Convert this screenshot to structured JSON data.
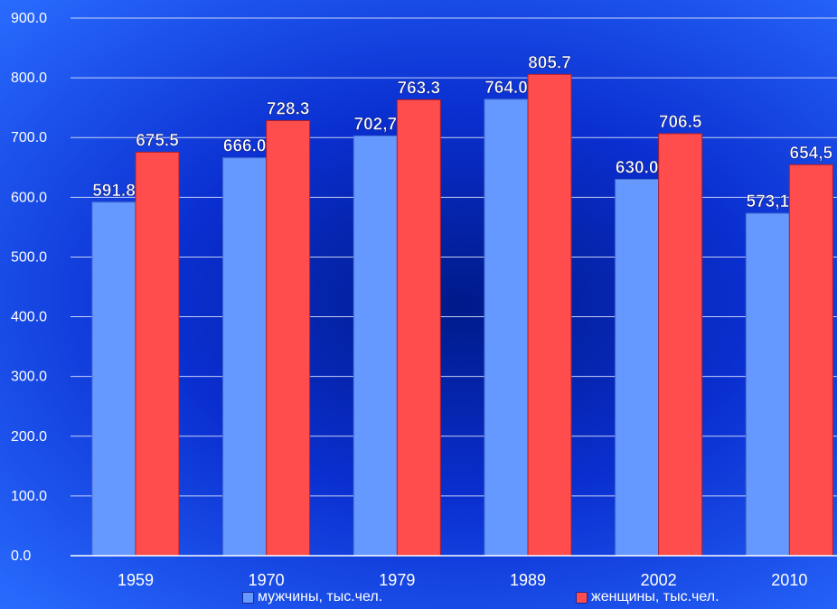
{
  "chart_data": {
    "type": "bar",
    "categories": [
      "1959",
      "1970",
      "1979",
      "1989",
      "2002",
      "2010"
    ],
    "series": [
      {
        "name": "мужчины, тыс.чел.",
        "values": [
          591.8,
          666.0,
          702.7,
          764.0,
          630.0,
          573.1
        ],
        "labels": [
          "591.8",
          "666.0",
          "702,7",
          "764.0",
          "630.0",
          "573,1"
        ],
        "color": "#6699ff"
      },
      {
        "name": "женщины, тыс.чел.",
        "values": [
          675.5,
          728.3,
          763.3,
          805.7,
          706.5,
          654.5
        ],
        "labels": [
          "675.5",
          "728.3",
          "763.3",
          "805.7",
          "706.5",
          "654,5"
        ],
        "color": "#ff4d4d"
      }
    ],
    "ylim": [
      0,
      900
    ],
    "yticks": [
      "0.0",
      "100.0",
      "200.0",
      "300.0",
      "400.0",
      "500.0",
      "600.0",
      "700.0",
      "800.0",
      "900.0"
    ],
    "grid": true,
    "legend": "bottom"
  }
}
